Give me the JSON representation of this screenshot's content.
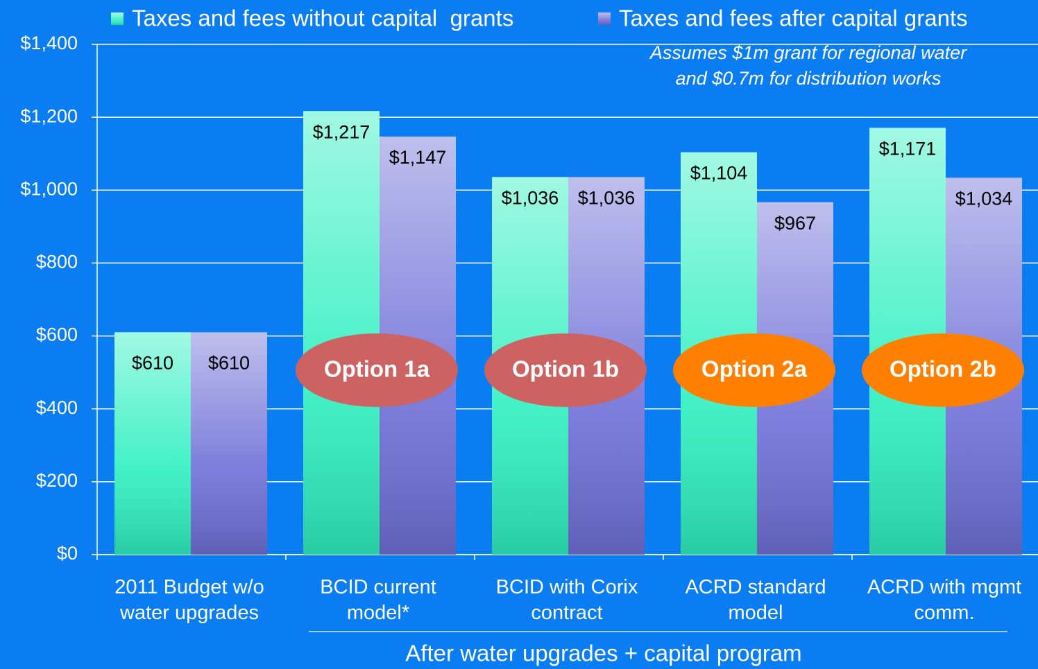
{
  "chart_data": {
    "type": "bar",
    "categories": [
      "2011 Budget w/o water upgrades",
      "BCID current model*",
      "BCID with Corix contract",
      "ACRD standard model",
      "ACRD with mgmt comm."
    ],
    "series": [
      {
        "name": "Taxes and fees without capital  grants",
        "color": "#30f0c0",
        "values": [
          610,
          1217,
          1036,
          1104,
          1171
        ],
        "value_labels": [
          "$610",
          "$1,217",
          "$1,036",
          "$1,104",
          "$1,171"
        ]
      },
      {
        "name": "Taxes and fees after capital grants",
        "color": "#7070d8",
        "values": [
          610,
          1147,
          1036,
          967,
          1034
        ],
        "value_labels": [
          "$610",
          "$1,147",
          "$1,036",
          "$967",
          "$1,034"
        ]
      }
    ],
    "ylim": [
      0,
      1400
    ],
    "yticks": [
      {
        "value": 0,
        "label": "$0"
      },
      {
        "value": 200,
        "label": "$200"
      },
      {
        "value": 400,
        "label": "$400"
      },
      {
        "value": 600,
        "label": "$600"
      },
      {
        "value": 800,
        "label": "$800"
      },
      {
        "value": 1000,
        "label": "$1,000"
      },
      {
        "value": 1200,
        "label": "$1,200"
      },
      {
        "value": 1400,
        "label": "$1,400"
      }
    ],
    "grid": true,
    "annotations": [
      "Assumes $1m grant for regional water",
      "and $0.7m for distribution works"
    ],
    "options": [
      {
        "label": "Option 1a",
        "color": "#cd6262"
      },
      {
        "label": "Option 1b",
        "color": "#cd6262"
      },
      {
        "label": "Option 2a",
        "color": "#ff7f00"
      },
      {
        "label": "Option 2b",
        "color": "#ff7f00"
      }
    ],
    "group_label": "After water upgrades + capital program"
  }
}
